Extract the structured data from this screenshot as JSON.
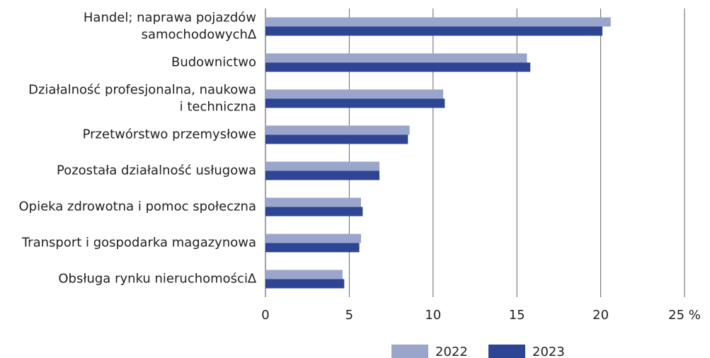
{
  "chart_data": {
    "type": "hbar",
    "categories": [
      "Handel; naprawa pojazdów\nsamochodowych∆",
      "Budownictwo",
      "Działalność profesjonalna, naukowa\ni techniczna",
      "Przetwórstwo przemysłowe",
      "Pozostała działalność usługowa",
      "Opieka zdrowotna i pomoc społeczna",
      "Transport i gospodarka magazynowa",
      "Obsługa rynku nieruchomości∆"
    ],
    "series": [
      {
        "name": "2022",
        "color": "#9aa5cc",
        "values": [
          20.6,
          15.6,
          10.6,
          8.6,
          6.8,
          5.7,
          5.7,
          4.6
        ]
      },
      {
        "name": "2023",
        "color": "#2e4593",
        "values": [
          20.1,
          15.8,
          10.7,
          8.5,
          6.8,
          5.8,
          5.6,
          4.7
        ]
      }
    ],
    "xlim": [
      0,
      25
    ],
    "xticks": [
      0,
      5,
      10,
      15,
      20,
      {
        "value": 25,
        "label": "25 %"
      }
    ],
    "grid": true
  }
}
